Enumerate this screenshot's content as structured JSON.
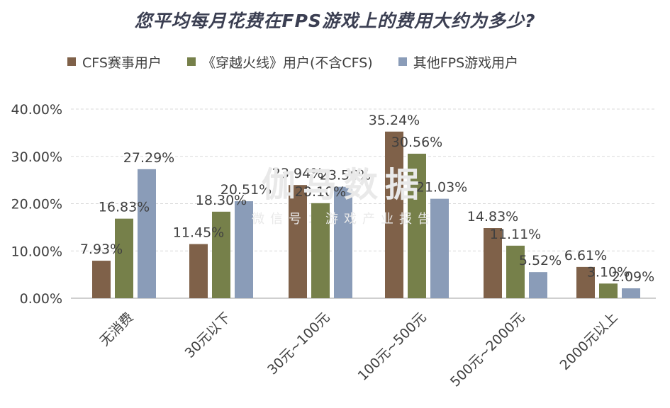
{
  "chart_data": {
    "type": "bar",
    "title": "您平均每月花费在FPS游戏上的费用大约为多少?",
    "categories": [
      "无消费",
      "30元以下",
      "30元~100元",
      "100元~500元",
      "500元~2000元",
      "2000元以上"
    ],
    "series": [
      {
        "name": "CFS赛事用户",
        "color": "#7f6149",
        "values": [
          7.93,
          11.45,
          23.94,
          35.24,
          14.83,
          6.61
        ],
        "labels": [
          "7.93%",
          "11.45%",
          "23.94%",
          "35.24%",
          "14.83%",
          "6.61%"
        ]
      },
      {
        "name": "《穿越火线》用户(不含CFS)",
        "color": "#76804a",
        "values": [
          16.83,
          18.3,
          20.1,
          30.56,
          11.11,
          3.1
        ],
        "labels": [
          "16.83%",
          "18.30%",
          "20.10%",
          "30.56%",
          "11.11%",
          "3.10%"
        ]
      },
      {
        "name": "其他FPS游戏用户",
        "color": "#8a9cb8",
        "values": [
          27.29,
          20.51,
          23.56,
          21.03,
          5.52,
          2.09
        ],
        "labels": [
          "27.29%",
          "20.51%",
          "23.56%",
          "21.03%",
          "5.52%",
          "2.09%"
        ]
      }
    ],
    "ylim": [
      0,
      40
    ],
    "yticks": [
      0,
      10,
      20,
      30,
      40
    ],
    "ytick_labels": [
      "0.00%",
      "10.00%",
      "20.00%",
      "30.00%",
      "40.00%"
    ],
    "xlabel": "",
    "ylabel": "",
    "grid": true,
    "legend_position": "top",
    "watermark": {
      "main": "伽马数据",
      "sub": "微信号：游戏产业报告"
    }
  }
}
